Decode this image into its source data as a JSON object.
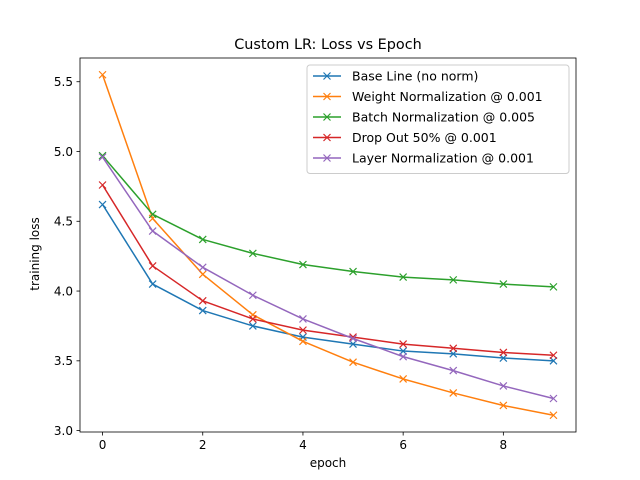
{
  "chart_data": {
    "type": "line",
    "title": "Custom LR: Loss vs Epoch",
    "xlabel": "epoch",
    "ylabel": "training loss",
    "xlim": [
      -0.45,
      9.45
    ],
    "ylim": [
      2.99,
      5.67
    ],
    "x": [
      0,
      1,
      2,
      3,
      4,
      5,
      6,
      7,
      8,
      9
    ],
    "x_ticks": [
      0,
      2,
      4,
      6,
      8
    ],
    "x_tick_labels": [
      "0",
      "2",
      "4",
      "6",
      "8"
    ],
    "y_ticks": [
      3.0,
      3.5,
      4.0,
      4.5,
      5.0,
      5.5
    ],
    "y_tick_labels": [
      "3.0",
      "3.5",
      "4.0",
      "4.5",
      "5.0",
      "5.5"
    ],
    "marker": "x",
    "grid": false,
    "legend_position": "top-right",
    "series": [
      {
        "name": "Base Line (no norm)",
        "color": "#1f77b4",
        "values": [
          4.62,
          4.05,
          3.86,
          3.75,
          3.67,
          3.62,
          3.57,
          3.55,
          3.52,
          3.5
        ]
      },
      {
        "name": "Weight Normalization @ 0.001",
        "color": "#ff7f0e",
        "values": [
          5.55,
          4.52,
          4.12,
          3.83,
          3.64,
          3.49,
          3.37,
          3.27,
          3.18,
          3.11
        ]
      },
      {
        "name": "Batch Normalization @ 0.005",
        "color": "#2ca02c",
        "values": [
          4.97,
          4.55,
          4.37,
          4.27,
          4.19,
          4.14,
          4.1,
          4.08,
          4.05,
          4.03
        ]
      },
      {
        "name": "Drop Out 50% @ 0.001",
        "color": "#d62728",
        "values": [
          4.76,
          4.18,
          3.93,
          3.8,
          3.72,
          3.67,
          3.62,
          3.59,
          3.56,
          3.54
        ]
      },
      {
        "name": "Layer Normalization @ 0.001",
        "color": "#9467bd",
        "values": [
          4.96,
          4.43,
          4.17,
          3.97,
          3.8,
          3.66,
          3.53,
          3.43,
          3.32,
          3.23
        ]
      }
    ]
  }
}
